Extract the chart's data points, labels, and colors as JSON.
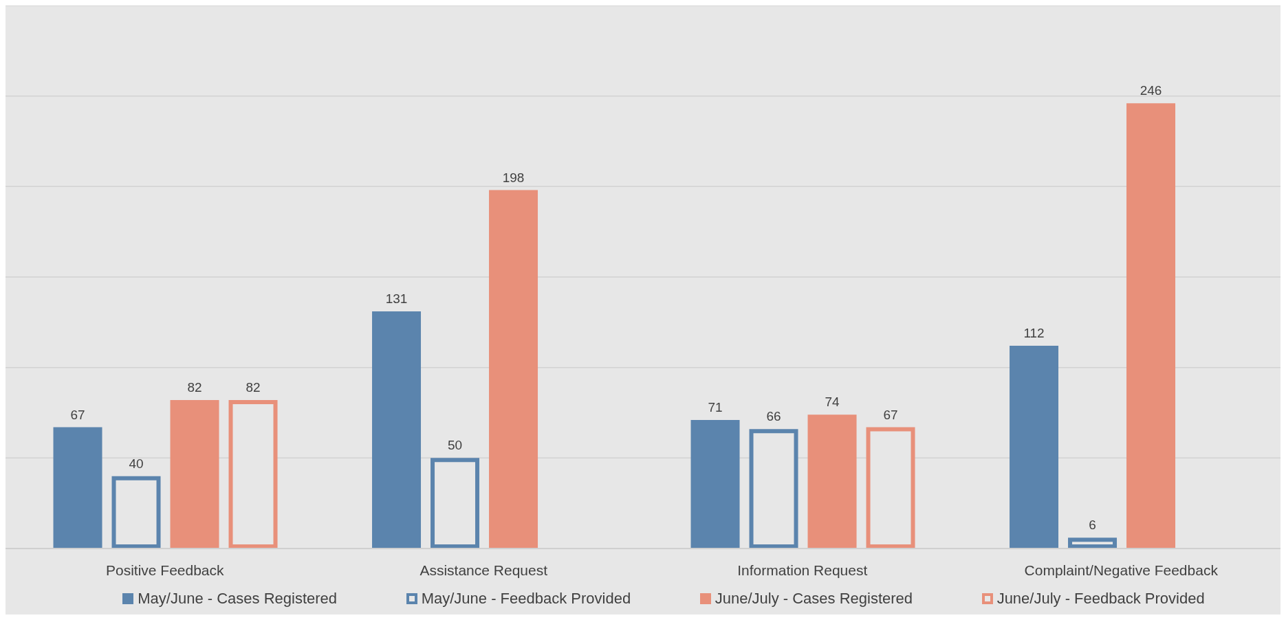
{
  "chart_data": {
    "type": "bar",
    "categories": [
      "Positive Feedback",
      "Assistance Request",
      "Information Request",
      "Complaint/Negative Feedback"
    ],
    "series": [
      {
        "name": "May/June - Cases Registered",
        "color": "#5b84ad",
        "values": [
          67,
          131,
          71,
          112
        ]
      },
      {
        "name": "May/June - Feedback Provided",
        "color": "#5b84ad",
        "values": [
          40,
          50,
          66,
          6
        ]
      },
      {
        "name": "June/July - Cases Registered",
        "color": "#e8907a",
        "values": [
          82,
          198,
          74,
          246
        ]
      },
      {
        "name": "June/July - Feedback Provided",
        "color": "#e8907a",
        "values": [
          82,
          null,
          67,
          null
        ]
      }
    ],
    "ylim": [
      0,
      300
    ],
    "yticks": [
      {
        "value": 0,
        "label": null
      },
      {
        "value": 50,
        "label": null
      },
      {
        "value": 100,
        "label": null
      },
      {
        "value": 150,
        "label": null
      },
      {
        "value": 200,
        "label": null
      },
      {
        "value": 250,
        "label": null
      },
      {
        "value": 300,
        "label": null
      }
    ],
    "tick_labels": "x",
    "grid": "y",
    "data_labels": true,
    "legend": "bottom"
  }
}
